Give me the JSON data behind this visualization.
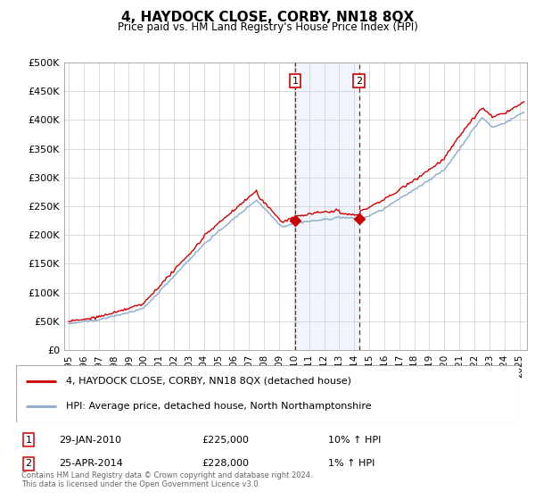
{
  "title": "4, HAYDOCK CLOSE, CORBY, NN18 8QX",
  "subtitle": "Price paid vs. HM Land Registry's House Price Index (HPI)",
  "legend_line1": "4, HAYDOCK CLOSE, CORBY, NN18 8QX (detached house)",
  "legend_line2": "HPI: Average price, detached house, North Northamptonshire",
  "footnote": "Contains HM Land Registry data © Crown copyright and database right 2024.\nThis data is licensed under the Open Government Licence v3.0.",
  "transactions": [
    {
      "num": 1,
      "date": "29-JAN-2010",
      "price": "£225,000",
      "hpi": "10% ↑ HPI",
      "year": 2010.08
    },
    {
      "num": 2,
      "date": "25-APR-2014",
      "price": "£228,000",
      "hpi": "1% ↑ HPI",
      "year": 2014.32
    }
  ],
  "transaction_prices": [
    225000,
    228000
  ],
  "red_line_color": "#cc0000",
  "blue_line_color": "#88aacc",
  "shade_color": "#ddeeff",
  "vline_color": "#cc0000",
  "background_color": "#ffffff",
  "grid_color": "#cccccc",
  "ylim": [
    0,
    500000
  ],
  "xlim_start": 1994.7,
  "xlim_end": 2025.5,
  "yticks": [
    0,
    50000,
    100000,
    150000,
    200000,
    250000,
    300000,
    350000,
    400000,
    450000,
    500000
  ],
  "ylabels": [
    "£0",
    "£50K",
    "£100K",
    "£150K",
    "£200K",
    "£250K",
    "£300K",
    "£350K",
    "£400K",
    "£450K",
    "£500K"
  ]
}
